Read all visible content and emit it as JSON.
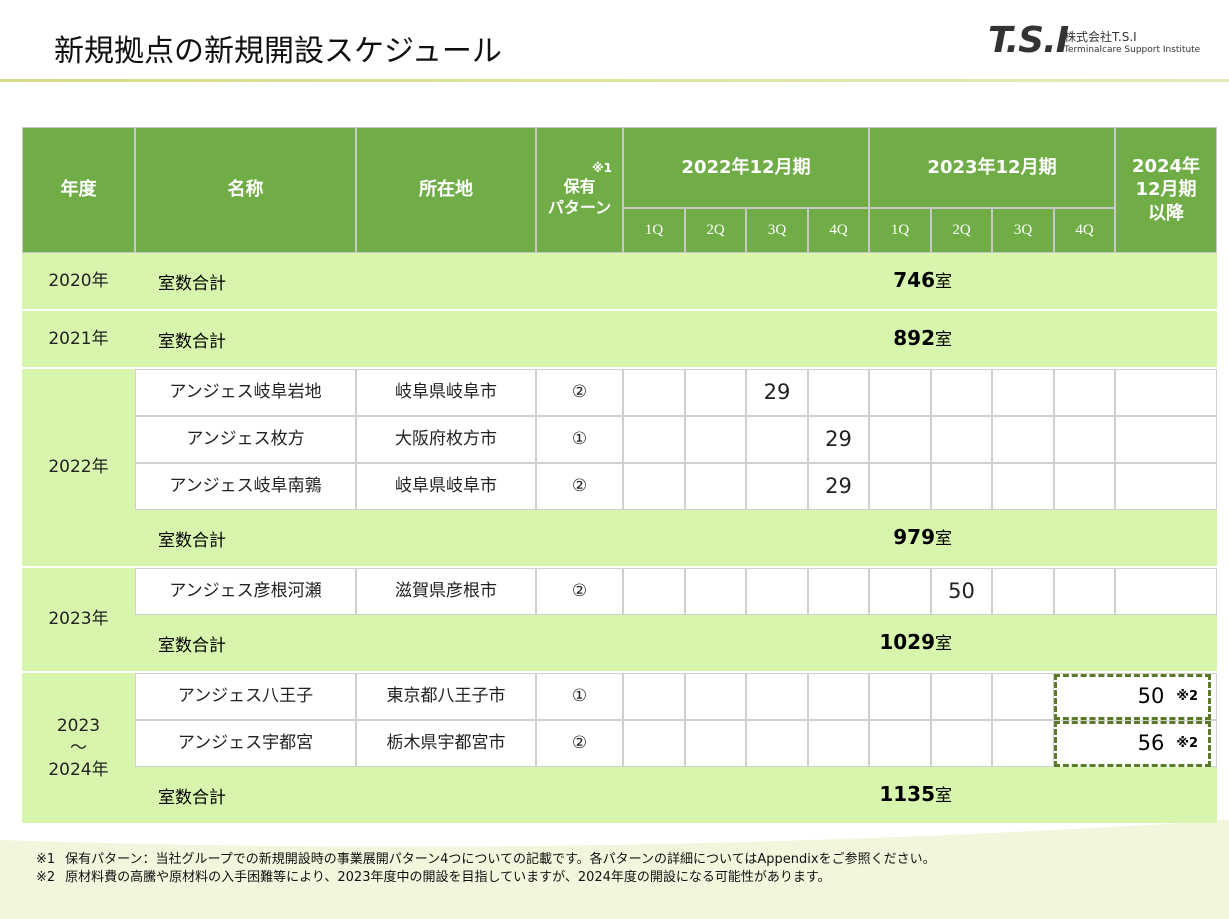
{
  "header": {
    "title": "新規拠点の新規開設スケジュール",
    "logo": "T.S.I",
    "company": "株式会社T.S.I",
    "company_en": "Terminalcare Support Institute"
  },
  "table": {
    "columns": {
      "year": "年度",
      "name": "名称",
      "location": "所在地",
      "pattern_note": "※1",
      "pattern": [
        "保有",
        "パターン"
      ],
      "periods": [
        {
          "label": "2022年12月期",
          "quarters": [
            "1Q",
            "2Q",
            "3Q",
            "4Q"
          ]
        },
        {
          "label": "2023年12月期",
          "quarters": [
            "1Q",
            "2Q",
            "3Q",
            "4Q"
          ]
        }
      ],
      "later": [
        "2024年",
        "12月期",
        "以降"
      ]
    },
    "groups": [
      {
        "year": [
          "2020年"
        ],
        "rows": [],
        "total": {
          "label": "室数合計",
          "value": 746,
          "unit": "室"
        }
      },
      {
        "year": [
          "2021年"
        ],
        "rows": [],
        "total": {
          "label": "室数合計",
          "value": 892,
          "unit": "室"
        }
      },
      {
        "year": [
          "2022年"
        ],
        "rows": [
          {
            "name": "アンジェス岐阜岩地",
            "location": "岐阜県岐阜市",
            "pattern": "②",
            "cells": [
              null,
              null,
              29,
              null,
              null,
              null,
              null,
              null,
              null
            ]
          },
          {
            "name": "アンジェス枚方",
            "location": "大阪府枚方市",
            "pattern": "①",
            "cells": [
              null,
              null,
              null,
              29,
              null,
              null,
              null,
              null,
              null
            ]
          },
          {
            "name": "アンジェス岐阜南鶉",
            "location": "岐阜県岐阜市",
            "pattern": "②",
            "cells": [
              null,
              null,
              null,
              29,
              null,
              null,
              null,
              null,
              null
            ]
          }
        ],
        "total": {
          "label": "室数合計",
          "value": 979,
          "unit": "室"
        }
      },
      {
        "year": [
          "2023年"
        ],
        "rows": [
          {
            "name": "アンジェス彦根河瀬",
            "location": "滋賀県彦根市",
            "pattern": "②",
            "cells": [
              null,
              null,
              null,
              null,
              null,
              50,
              null,
              null,
              null
            ]
          }
        ],
        "total": {
          "label": "室数合計",
          "value": 1029,
          "unit": "室"
        }
      },
      {
        "year": [
          "2023",
          "～",
          "2024年"
        ],
        "rows": [
          {
            "name": "アンジェス八王子",
            "location": "東京都八王子市",
            "pattern": "①",
            "cells": [
              null,
              null,
              null,
              null,
              null,
              null,
              null,
              null,
              {
                "value": 50,
                "note": "※2"
              }
            ]
          },
          {
            "name": "アンジェス宇都宮",
            "location": "栃木県宇都宮市",
            "pattern": "②",
            "cells": [
              null,
              null,
              null,
              null,
              null,
              null,
              null,
              null,
              {
                "value": 56,
                "note": "※2"
              }
            ]
          }
        ],
        "total": {
          "label": "室数合計",
          "value": 1135,
          "unit": "室"
        }
      }
    ]
  },
  "footnotes": [
    {
      "mark": "※1",
      "text": "保有パターン：当社グループでの新規開設時の事業展開パターン4つについての記載です。各パターンの詳細についてはAppendixをご参照ください。"
    },
    {
      "mark": "※2",
      "text": "原材料費の高騰や原材料の入手困難等により、2023年度中の開設を目指していますが、2024年度の開設になる可能性があります。"
    }
  ]
}
